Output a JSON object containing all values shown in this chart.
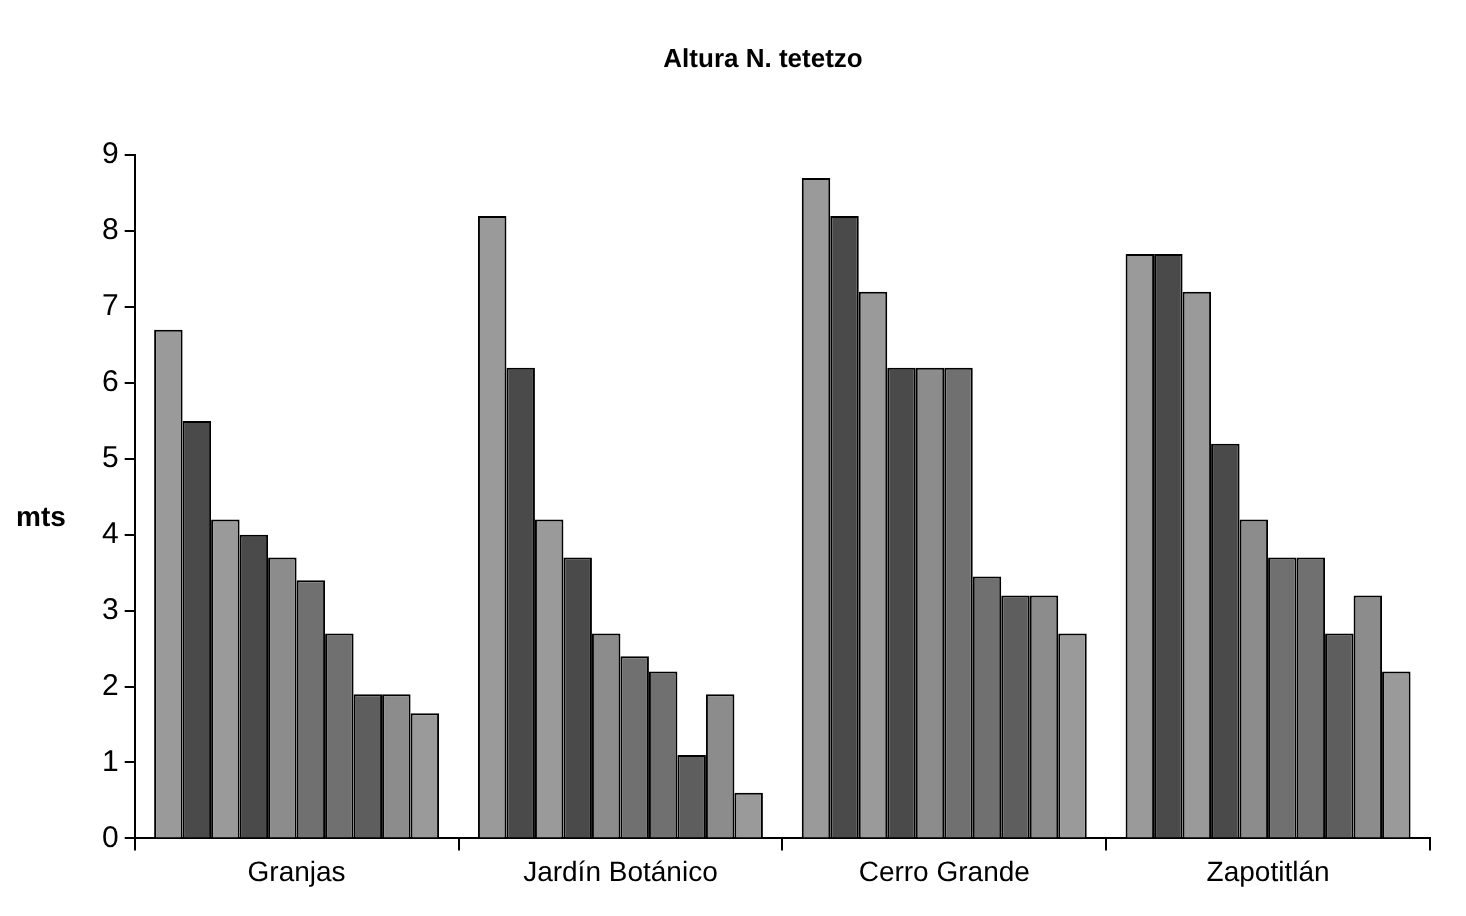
{
  "chart_data": {
    "type": "bar",
    "title": "Altura N. tetetzo",
    "ylabel": "mts",
    "categories": [
      "Granjas",
      "Jardín Botánico",
      "Cerro Grande",
      "Zapotitlán"
    ],
    "series": [
      {
        "color": "#9a9a9a",
        "values": [
          6.7,
          8.2,
          8.7,
          7.7
        ]
      },
      {
        "color": "#4a4a4a",
        "values": [
          5.5,
          6.2,
          8.2,
          7.7
        ]
      },
      {
        "color": "#9a9a9a",
        "values": [
          4.2,
          4.2,
          7.2,
          7.2
        ]
      },
      {
        "color": "#4a4a4a",
        "values": [
          4,
          3.7,
          6.2,
          5.2
        ]
      },
      {
        "color": "#8c8c8c",
        "values": [
          3.7,
          2.7,
          6.2,
          4.2
        ]
      },
      {
        "color": "#707070",
        "values": [
          3.4,
          2.4,
          6.2,
          3.7
        ]
      },
      {
        "color": "#707070",
        "values": [
          2.7,
          2.2,
          3.45,
          3.7
        ]
      },
      {
        "color": "#5e5e5e",
        "values": [
          1.9,
          1.1,
          3.2,
          2.7
        ]
      },
      {
        "color": "#8c8c8c",
        "values": [
          1.9,
          1.9,
          3.2,
          3.2
        ]
      },
      {
        "color": "#9a9a9a",
        "values": [
          1.65,
          0.6,
          2.7,
          2.2
        ]
      }
    ],
    "ylim": [
      0,
      9
    ],
    "yticks": [
      0,
      1,
      2,
      3,
      4,
      5,
      6,
      7,
      8,
      9
    ],
    "grid": false,
    "legend": false
  }
}
